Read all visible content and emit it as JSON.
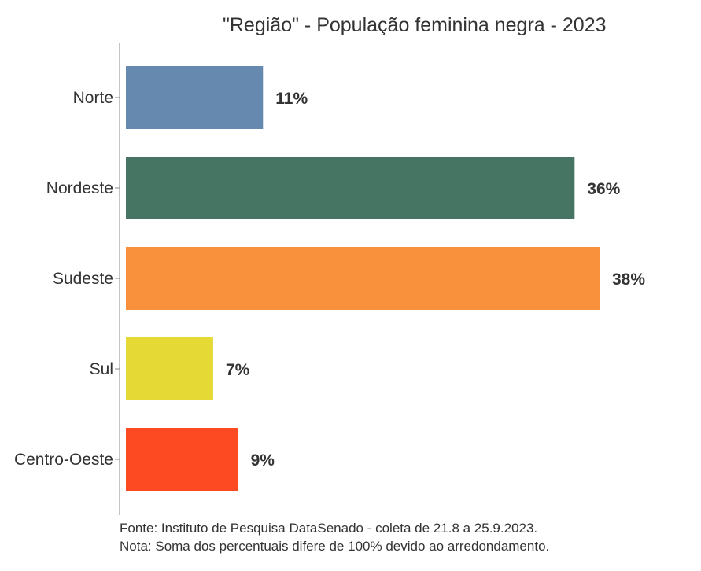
{
  "chart_data": {
    "type": "bar",
    "orientation": "horizontal",
    "title": "\"Região\" - População feminina negra - 2023",
    "categories": [
      "Norte",
      "Nordeste",
      "Sudeste",
      "Sul",
      "Centro-Oeste"
    ],
    "values": [
      11,
      36,
      38,
      7,
      9
    ],
    "data_labels": [
      "11%",
      "36%",
      "38%",
      "7%",
      "9%"
    ],
    "colors": [
      "#6689b0",
      "#467563",
      "#f9913c",
      "#e4d935",
      "#fd4a22"
    ],
    "xlabel": "",
    "ylabel": "",
    "xlim": [
      0,
      38
    ],
    "grid": false
  },
  "footer": {
    "source": "Fonte: Instituto de Pesquisa DataSenado - coleta de 21.8 a 25.9.2023.",
    "note": "Nota: Soma dos percentuais difere de 100% devido ao arredondamento."
  }
}
